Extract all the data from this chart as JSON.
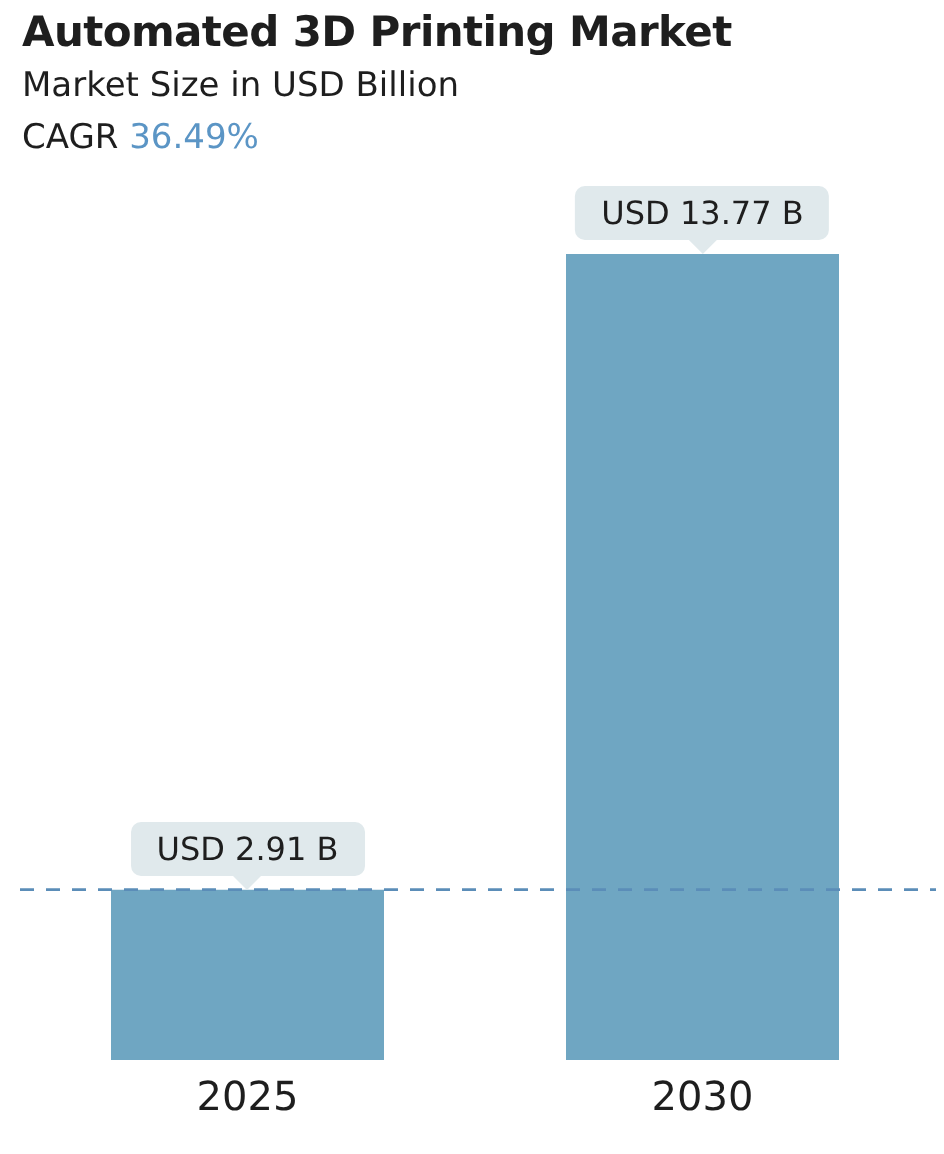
{
  "chart_data": {
    "type": "bar",
    "title": "Automated 3D Printing Market",
    "subtitle": "Market Size in USD Billion",
    "annotations": [
      "CAGR 36.49%"
    ],
    "categories": [
      "2025",
      "2030"
    ],
    "values": [
      2.91,
      13.77
    ],
    "color": "#6fa6c2",
    "value_labels": [
      "USD 2.91 B",
      "USD 13.77 B"
    ],
    "ref_lines": [
      {
        "axis": "y",
        "value": 2.91,
        "color": "#5b8db8",
        "line_style": "dashed"
      }
    ],
    "grid": false,
    "legend": false
  }
}
